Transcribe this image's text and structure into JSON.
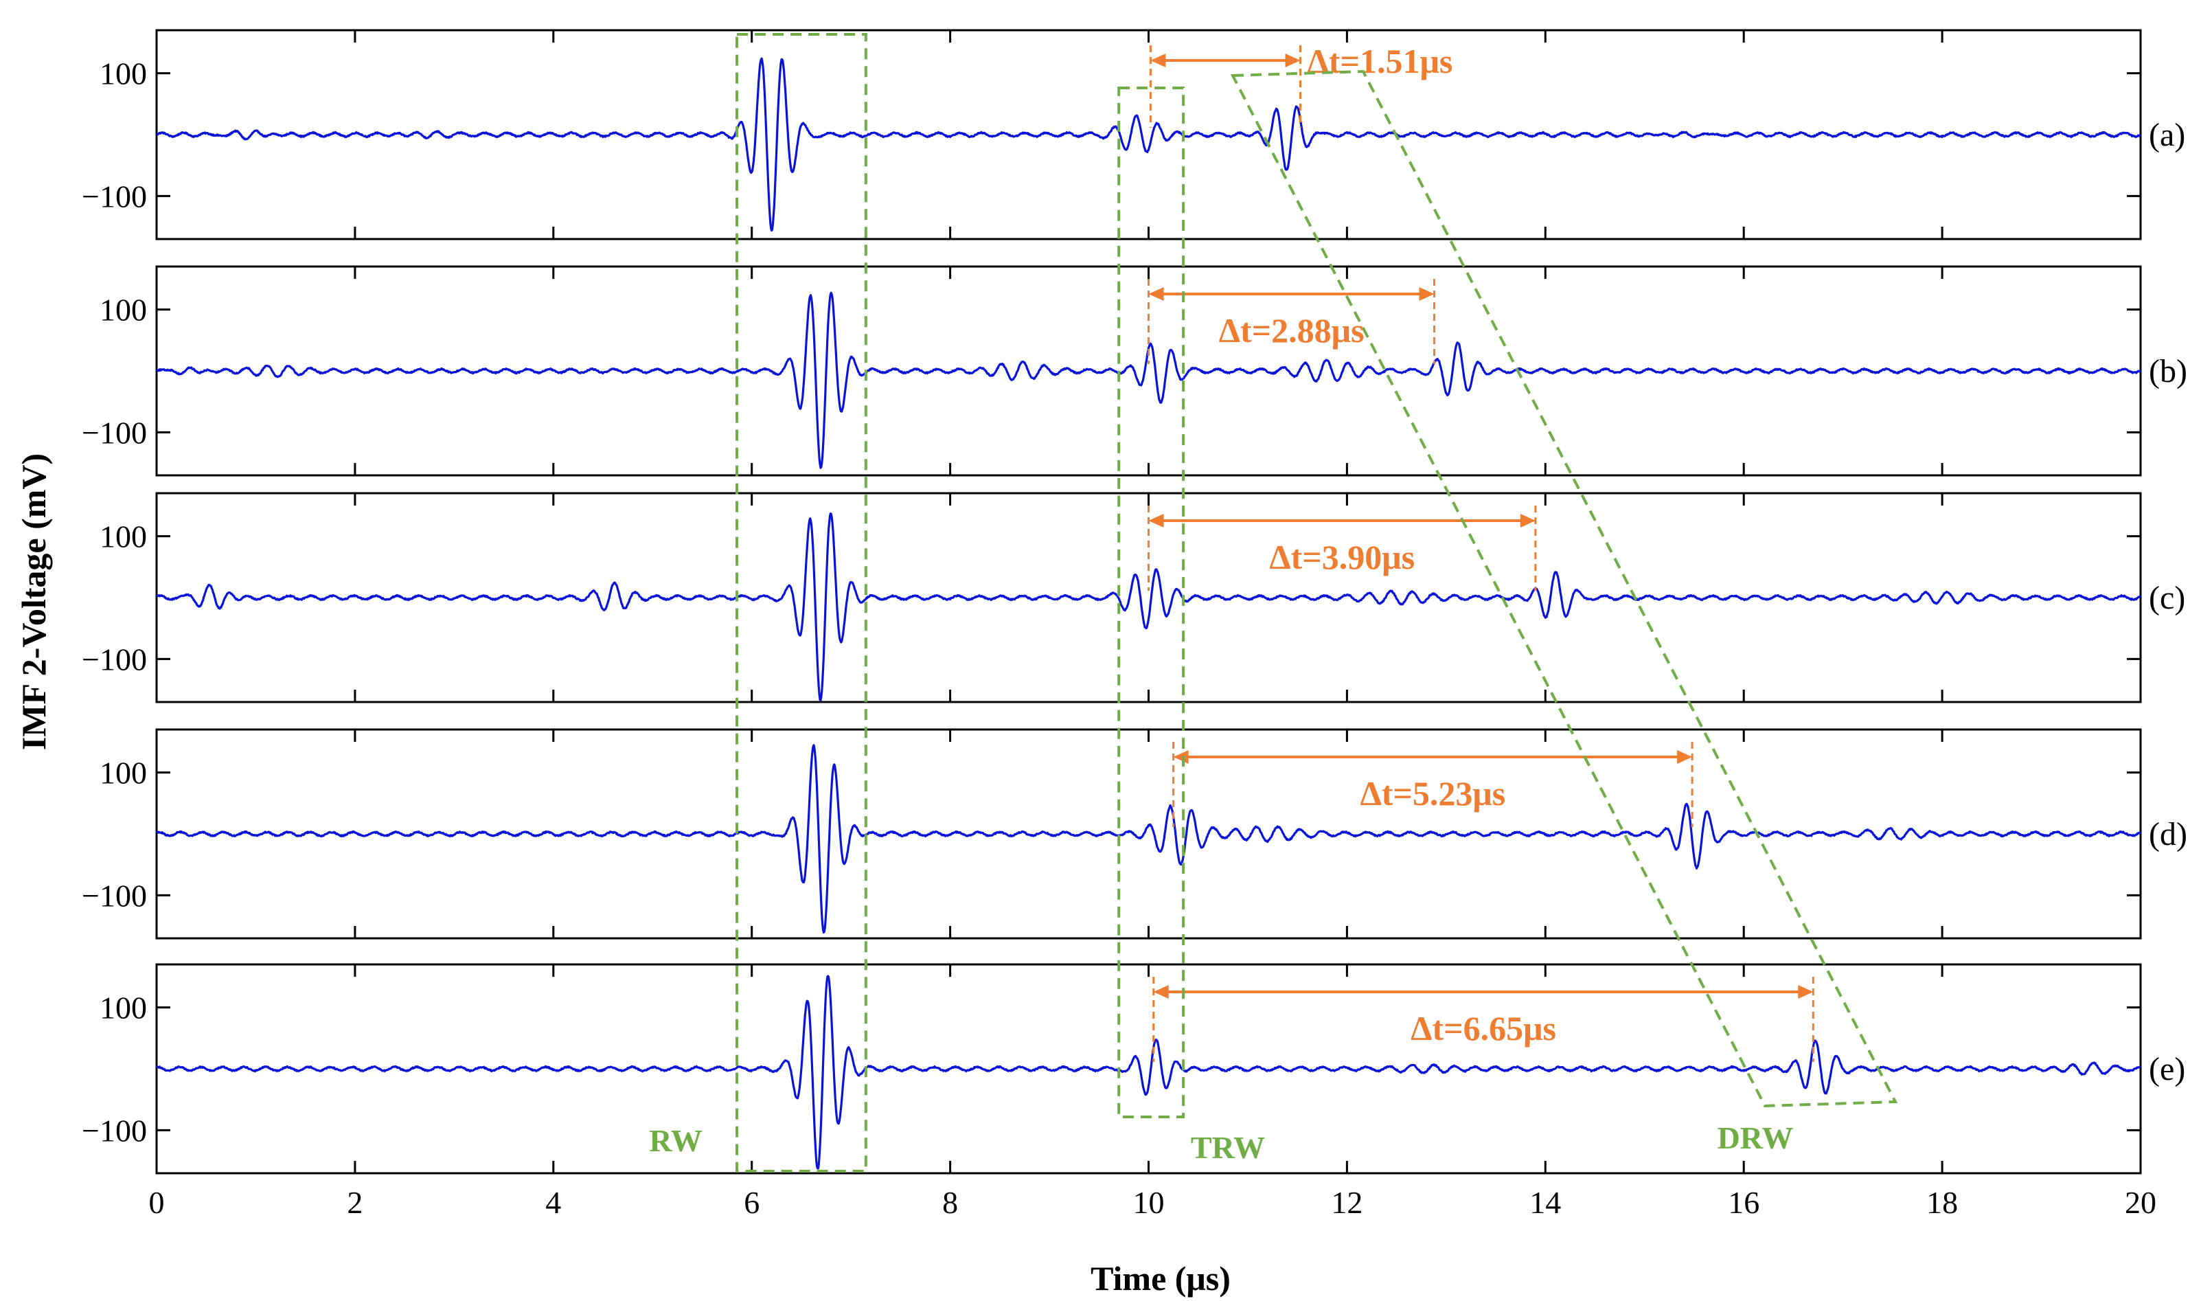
{
  "chart_data": {
    "type": "line",
    "ylabel": "IMF 2-Voltage (mV)",
    "xlabel": "Time (μs)",
    "xlim": [
      0,
      20
    ],
    "ylim": [
      -170,
      170
    ],
    "x_ticks": [
      "0",
      "2",
      "4",
      "6",
      "8",
      "10",
      "12",
      "14",
      "16",
      "18",
      "20"
    ],
    "y_ticks": [
      "100",
      "−100"
    ],
    "y_tick_values": [
      100,
      -100
    ],
    "colors": {
      "signal": "#0a14d8",
      "annotation": "#ee7d31",
      "region": "#70ad47",
      "axis": "#000000"
    },
    "panels": [
      {
        "label": "(a)",
        "trw_time_us": 10.02,
        "drw_time_us": 11.53,
        "delta_t_label": "Δt=1.51μs",
        "series": {
          "name": "IMF 2 (a)",
          "noise_mV": 3,
          "packets": [
            {
              "t_us": 0.9,
              "amp_mV": 10,
              "width_us": 0.25
            },
            {
              "t_us": 2.8,
              "amp_mV": 6,
              "width_us": 0.3
            },
            {
              "t_us": 6.2,
              "amp_mV": 155,
              "width_us": 0.22
            },
            {
              "t_us": 9.9,
              "amp_mV": 30,
              "width_us": 0.25
            },
            {
              "t_us": 11.4,
              "amp_mV": 60,
              "width_us": 0.2
            },
            {
              "t_us": 15.4,
              "amp_mV": 7,
              "width_us": 0.3
            }
          ]
        }
      },
      {
        "label": "(b)",
        "trw_time_us": 10.0,
        "drw_time_us": 12.88,
        "delta_t_label": "Δt=2.88μs",
        "series": {
          "name": "IMF 2 (b)",
          "noise_mV": 3,
          "packets": [
            {
              "t_us": 0.3,
              "amp_mV": 8,
              "width_us": 0.2
            },
            {
              "t_us": 1.2,
              "amp_mV": 7,
              "width_us": 0.3
            },
            {
              "t_us": 6.7,
              "amp_mV": 155,
              "width_us": 0.22
            },
            {
              "t_us": 8.7,
              "amp_mV": 12,
              "width_us": 0.3
            },
            {
              "t_us": 10.1,
              "amp_mV": 50,
              "width_us": 0.2
            },
            {
              "t_us": 11.8,
              "amp_mV": 15,
              "width_us": 0.35
            },
            {
              "t_us": 13.1,
              "amp_mV": 45,
              "width_us": 0.2
            }
          ]
        }
      },
      {
        "label": "(c)",
        "trw_time_us": 10.0,
        "drw_time_us": 13.9,
        "delta_t_label": "Δt=3.90μs",
        "series": {
          "name": "IMF 2 (c)",
          "noise_mV": 3,
          "packets": [
            {
              "t_us": 0.55,
              "amp_mV": 22,
              "width_us": 0.2
            },
            {
              "t_us": 4.6,
              "amp_mV": 22,
              "width_us": 0.2
            },
            {
              "t_us": 6.7,
              "amp_mV": 165,
              "width_us": 0.22
            },
            {
              "t_us": 10.0,
              "amp_mV": 50,
              "width_us": 0.25
            },
            {
              "t_us": 12.5,
              "amp_mV": 8,
              "width_us": 0.4
            },
            {
              "t_us": 14.1,
              "amp_mV": 42,
              "width_us": 0.2
            },
            {
              "t_us": 18.0,
              "amp_mV": 8,
              "width_us": 0.4
            }
          ]
        }
      },
      {
        "label": "(d)",
        "trw_time_us": 10.25,
        "drw_time_us": 15.48,
        "delta_t_label": "Δt=5.23μs",
        "series": {
          "name": "IMF 2 (d)",
          "noise_mV": 3,
          "packets": [
            {
              "t_us": 6.7,
              "amp_mV": 165,
              "width_us": 0.22
            },
            {
              "t_us": 10.3,
              "amp_mV": 48,
              "width_us": 0.25
            },
            {
              "t_us": 11.2,
              "amp_mV": 10,
              "width_us": 0.4
            },
            {
              "t_us": 15.5,
              "amp_mV": 55,
              "width_us": 0.2
            },
            {
              "t_us": 17.5,
              "amp_mV": 10,
              "width_us": 0.4
            }
          ]
        }
      },
      {
        "label": "(e)",
        "trw_time_us": 10.05,
        "drw_time_us": 16.7,
        "delta_t_label": "Δt=6.65μs",
        "series": {
          "name": "IMF 2 (e)",
          "noise_mV": 3,
          "packets": [
            {
              "t_us": 6.7,
              "amp_mV": 165,
              "width_us": 0.22
            },
            {
              "t_us": 10.05,
              "amp_mV": 50,
              "width_us": 0.2
            },
            {
              "t_us": 12.8,
              "amp_mV": 6,
              "width_us": 0.4
            },
            {
              "t_us": 16.75,
              "amp_mV": 45,
              "width_us": 0.2
            },
            {
              "t_us": 19.5,
              "amp_mV": 10,
              "width_us": 0.3
            }
          ]
        }
      }
    ],
    "regions": [
      {
        "name": "RW",
        "t_start_us": 5.85,
        "t_end_us": 7.15
      },
      {
        "name": "TRW",
        "t_start_us": 9.7,
        "t_end_us": 10.35
      },
      {
        "name": "DRW"
      }
    ]
  }
}
